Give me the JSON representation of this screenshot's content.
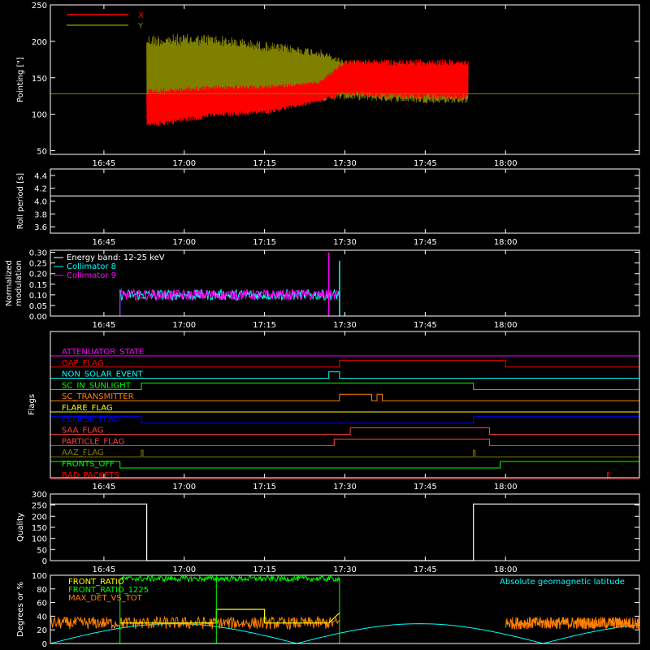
{
  "chart_data": [
    {
      "type": "line",
      "panel": "pointing",
      "ylabel": "Pointing [\"]",
      "ylim": [
        45,
        250
      ],
      "yticks": [
        50,
        100,
        150,
        200,
        250
      ],
      "xlim": [
        "16:35",
        "18:25"
      ],
      "xticks": [
        "16:45",
        "17:00",
        "17:15",
        "17:30",
        "17:45",
        "18:00"
      ],
      "series": [
        {
          "name": "X",
          "color": "#ff0000",
          "envelope": {
            "x": [
              "16:53",
              "17:05",
              "17:15",
              "17:25",
              "17:30",
              "17:45",
              "17:53"
            ],
            "low": [
              80,
              95,
              100,
              115,
              125,
              120,
              120
            ],
            "high": [
              135,
              140,
              140,
              145,
              175,
              175,
              175
            ]
          }
        },
        {
          "name": "Y",
          "color": "#808000",
          "envelope": {
            "x": [
              "16:53",
              "17:05",
              "17:15",
              "17:25",
              "17:30",
              "17:45",
              "17:53"
            ],
            "low": [
              90,
              105,
              110,
              118,
              120,
              115,
              115
            ],
            "high": [
              210,
              210,
              200,
              190,
              175,
              170,
              168
            ]
          }
        }
      ],
      "reference_line": {
        "y": 128,
        "color": "#808000"
      }
    },
    {
      "type": "line",
      "panel": "roll",
      "ylabel": "Roll period [s]",
      "ylim": [
        3.5,
        4.5
      ],
      "yticks": [
        "3.6",
        "3.8",
        "4.0",
        "4.2",
        "4.4"
      ],
      "xticks": [
        "16:45",
        "17:00",
        "17:15",
        "17:30",
        "17:45",
        "18:00"
      ],
      "series": [
        {
          "color": "#ffffff",
          "value": 4.08
        }
      ]
    },
    {
      "type": "line",
      "panel": "modulation",
      "ylabel": "Normalized modulation",
      "ylim": [
        0,
        0.31
      ],
      "yticks": [
        "0.00",
        "0.05",
        "0.10",
        "0.15",
        "0.20",
        "0.25",
        "0.30"
      ],
      "xticks": [
        "16:45",
        "17:00",
        "17:15",
        "17:30",
        "17:45",
        "18:00"
      ],
      "legend": [
        {
          "text": "Energy band: 12-25 keV",
          "color": "#ffffff"
        },
        {
          "text": "Collimator 8",
          "color": "#00ffff"
        },
        {
          "text": "Collimator 9",
          "color": "#ff00ff"
        }
      ],
      "active_interval": [
        "16:48",
        "17:29"
      ],
      "mean": 0.1,
      "spikes": [
        {
          "x": "17:27",
          "value": 0.3,
          "color": "#ff00ff"
        },
        {
          "x": "17:29",
          "value": 0.26,
          "color": "#00ffff"
        }
      ]
    },
    {
      "type": "line",
      "panel": "flags",
      "ylabel": "Flags",
      "xticks": [
        "16:45",
        "17:00",
        "17:15",
        "17:30",
        "17:45",
        "18:00"
      ],
      "flags": [
        {
          "name": "ATTENUATOR_STATE",
          "color": "#ff00ff",
          "on": []
        },
        {
          "name": "GAP_FLAG",
          "color": "#ff0000",
          "on": [
            [
              "17:29",
              "18:00"
            ]
          ]
        },
        {
          "name": "NON_SOLAR_EVENT",
          "color": "#00ffff",
          "on": [
            [
              "17:27",
              "17:29"
            ]
          ]
        },
        {
          "name": "SC_IN_SUNLIGHT",
          "color": "#00ff00",
          "on": [
            [
              "16:52",
              "17:54"
            ]
          ]
        },
        {
          "name": "SC_TRANSMITTER",
          "color": "#ff8000",
          "on": [
            [
              "17:29",
              "17:35"
            ],
            [
              "17:36",
              "17:37"
            ]
          ]
        },
        {
          "name": "FLARE_FLAG",
          "color": "#ffff00",
          "on": []
        },
        {
          "name": "ECLIPSE_FLAG",
          "color": "#0000ff",
          "on": [
            [
              "16:35",
              "16:52"
            ],
            [
              "17:54",
              "18:25"
            ]
          ]
        },
        {
          "name": "SAA_FLAG",
          "color": "#ff4040",
          "on": [
            [
              "17:31",
              "17:57"
            ]
          ]
        },
        {
          "name": "PARTICLE_FLAG",
          "color": "#ff4040",
          "on": [
            [
              "17:28",
              "17:57"
            ]
          ]
        },
        {
          "name": "AAZ_FLAG",
          "color": "#808000",
          "on": [
            [
              "16:52",
              "16:52"
            ],
            [
              "17:54",
              "17:54"
            ]
          ]
        },
        {
          "name": "FRONTS_OFF",
          "color": "#00ff00",
          "on": [
            [
              "16:35",
              "16:48"
            ],
            [
              "17:59",
              "18:25"
            ]
          ]
        },
        {
          "name": "BAD_PACKETS",
          "color": "#ff0000",
          "on": [
            [
              "18:19",
              "18:19"
            ]
          ]
        }
      ]
    },
    {
      "type": "line",
      "panel": "quality",
      "ylabel": "Quality",
      "ylim": [
        0,
        300
      ],
      "yticks": [
        0,
        50,
        100,
        150,
        200,
        250,
        300
      ],
      "xticks": [
        "16:45",
        "17:00",
        "17:15",
        "17:30",
        "17:45",
        "18:00"
      ],
      "segments": [
        {
          "x": [
            "16:35",
            "16:53"
          ],
          "value": 255
        },
        {
          "x": [
            "16:53",
            "17:54"
          ],
          "value": 0
        },
        {
          "x": [
            "17:54",
            "18:25"
          ],
          "value": 255
        }
      ]
    },
    {
      "type": "line",
      "panel": "ratios",
      "ylabel": "Degrees or %",
      "ylim": [
        0,
        100
      ],
      "yticks": [
        0,
        20,
        40,
        60,
        80,
        100
      ],
      "legend": [
        {
          "text": "FRONT_RATIO",
          "color": "#ffff00"
        },
        {
          "text": "FRONT_RATIO_1225",
          "color": "#00ff00"
        },
        {
          "text": "MAX_DET_VS_TOT",
          "color": "#ff8000"
        }
      ],
      "annotation": {
        "text": "Absolute geomagnetic latitude",
        "color": "#00ffff"
      },
      "series": [
        {
          "name": "FRONT_RATIO_1225",
          "color": "#00ff00",
          "x": [
            "16:48",
            "17:29"
          ],
          "mean": 95
        },
        {
          "name": "FRONT_RATIO",
          "color": "#ffff00",
          "points": [
            [
              "16:48",
              30
            ],
            [
              "17:06",
              30
            ],
            [
              "17:06",
              50
            ],
            [
              "17:15",
              50
            ],
            [
              "17:15",
              30
            ],
            [
              "17:27",
              30
            ],
            [
              "17:29",
              45
            ]
          ]
        },
        {
          "name": "MAX_DET_VS_TOT",
          "color": "#ff8000",
          "mean": 30
        }
      ],
      "latitude_curve": {
        "color": "#00ffff",
        "peaks": [
          [
            "16:56",
            28
          ],
          [
            "17:45",
            30
          ]
        ],
        "troughs": [
          [
            "16:35",
            0
          ],
          [
            "17:21",
            0
          ],
          [
            "18:09",
            0
          ]
        ]
      },
      "vertical_markers": [
        {
          "x": "17:06",
          "color": "#00ff00"
        }
      ]
    }
  ]
}
